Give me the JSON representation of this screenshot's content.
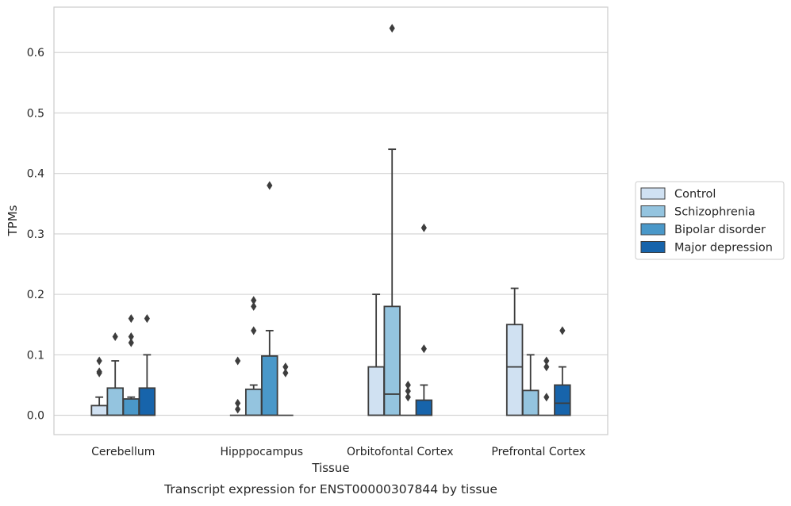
{
  "caption": "Transcript expression for ENST00000307844 by tissue",
  "chart_data": {
    "type": "boxplot",
    "title": "",
    "xlabel": "Tissue",
    "ylabel": "TPMs",
    "ylim": [
      -0.032,
      0.675
    ],
    "yticks": [
      0.0,
      0.1,
      0.2,
      0.3,
      0.4,
      0.5,
      0.6
    ],
    "ytick_labels": [
      "0.0",
      "0.1",
      "0.2",
      "0.3",
      "0.4",
      "0.5",
      "0.6"
    ],
    "grid": "horizontal",
    "legend_position": "right",
    "categories": [
      "Cerebellum",
      "Hipppocampus",
      "Orbitofontal Cortex",
      "Prefrontal Cortex"
    ],
    "series": [
      {
        "name": "Control",
        "color": "#d0e1f2",
        "boxes": [
          {
            "whislo": 0.0,
            "q1": 0.0,
            "med": 0.0,
            "q3": 0.016,
            "whishi": 0.03,
            "fliers": [
              0.07,
              0.072,
              0.09
            ]
          },
          {
            "whislo": 0.0,
            "q1": 0.0,
            "med": 0.0,
            "q3": 0.0,
            "whishi": 0.0,
            "fliers": [
              0.01,
              0.02,
              0.09
            ]
          },
          {
            "whislo": 0.0,
            "q1": 0.0,
            "med": 0.0,
            "q3": 0.08,
            "whishi": 0.2,
            "fliers": []
          },
          {
            "whislo": 0.0,
            "q1": 0.0,
            "med": 0.08,
            "q3": 0.15,
            "whishi": 0.21,
            "fliers": []
          }
        ]
      },
      {
        "name": "Schizophrenia",
        "color": "#94c4df",
        "boxes": [
          {
            "whislo": 0.0,
            "q1": 0.0,
            "med": 0.0,
            "q3": 0.045,
            "whishi": 0.09,
            "fliers": [
              0.13
            ]
          },
          {
            "whislo": 0.0,
            "q1": 0.0,
            "med": 0.0,
            "q3": 0.043,
            "whishi": 0.05,
            "fliers": [
              0.14,
              0.18,
              0.19
            ]
          },
          {
            "whislo": 0.0,
            "q1": 0.0,
            "med": 0.035,
            "q3": 0.18,
            "whishi": 0.44,
            "fliers": [
              0.64
            ]
          },
          {
            "whislo": 0.0,
            "q1": 0.0,
            "med": 0.0,
            "q3": 0.041,
            "whishi": 0.1,
            "fliers": []
          }
        ]
      },
      {
        "name": "Bipolar disorder",
        "color": "#4a98c9",
        "boxes": [
          {
            "whislo": 0.0,
            "q1": 0.0,
            "med": 0.0,
            "q3": 0.027,
            "whishi": 0.03,
            "fliers": [
              0.12,
              0.13,
              0.16
            ]
          },
          {
            "whislo": 0.0,
            "q1": 0.0,
            "med": 0.0,
            "q3": 0.098,
            "whishi": 0.14,
            "fliers": [
              0.38
            ]
          },
          {
            "whislo": 0.0,
            "q1": 0.0,
            "med": 0.0,
            "q3": 0.0,
            "whishi": 0.0,
            "fliers": [
              0.03,
              0.04,
              0.05
            ]
          },
          {
            "whislo": 0.0,
            "q1": 0.0,
            "med": 0.0,
            "q3": 0.0,
            "whishi": 0.0,
            "fliers": [
              0.03,
              0.08,
              0.09
            ]
          }
        ]
      },
      {
        "name": "Major depression",
        "color": "#1764ab",
        "boxes": [
          {
            "whislo": 0.0,
            "q1": 0.0,
            "med": 0.0,
            "q3": 0.045,
            "whishi": 0.1,
            "fliers": [
              0.16
            ]
          },
          {
            "whislo": 0.0,
            "q1": 0.0,
            "med": 0.0,
            "q3": 0.0,
            "whishi": 0.0,
            "fliers": [
              0.07,
              0.08
            ]
          },
          {
            "whislo": 0.0,
            "q1": 0.0,
            "med": 0.0,
            "q3": 0.025,
            "whishi": 0.05,
            "fliers": [
              0.11,
              0.31
            ]
          },
          {
            "whislo": 0.0,
            "q1": 0.0,
            "med": 0.02,
            "q3": 0.05,
            "whishi": 0.08,
            "fliers": [
              0.14
            ]
          }
        ]
      }
    ]
  }
}
